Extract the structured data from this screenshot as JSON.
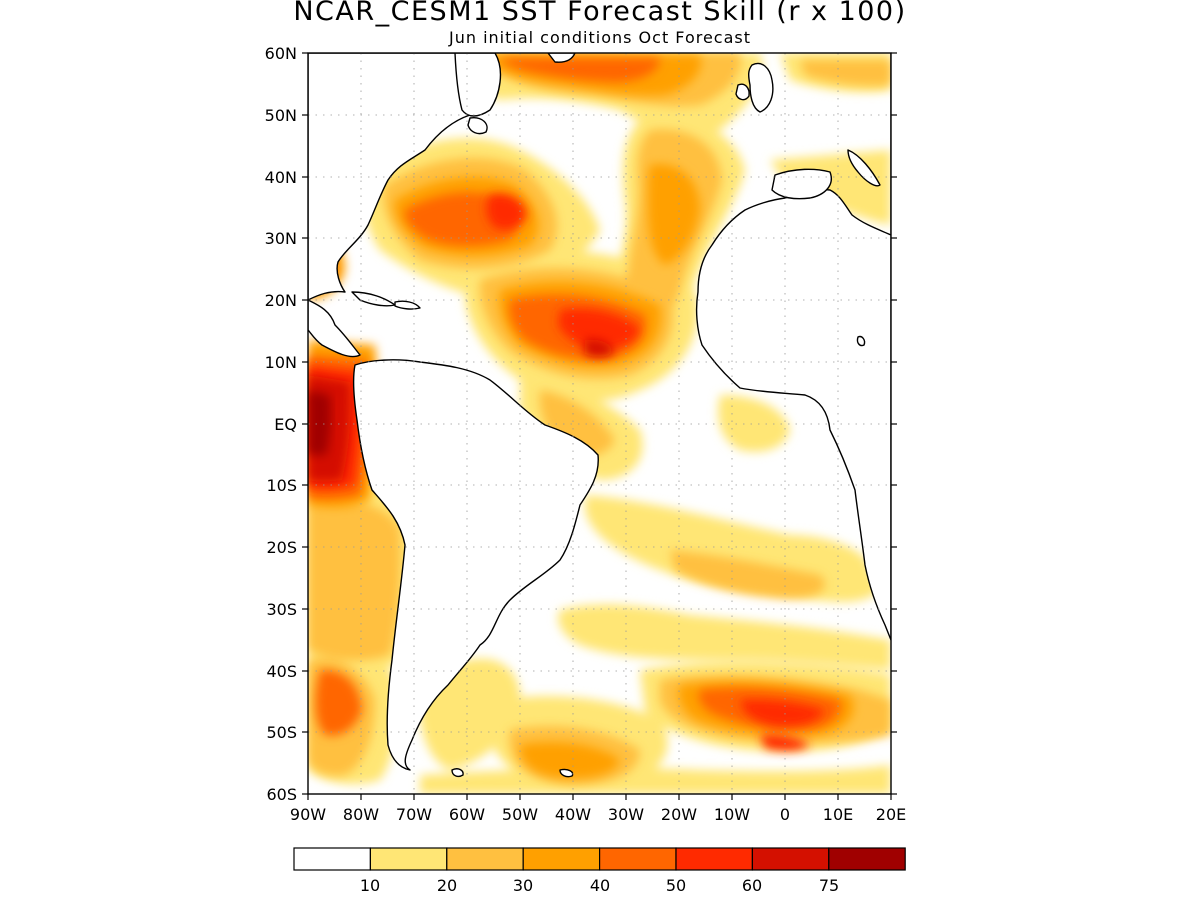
{
  "header": {
    "title": "NCAR_CESM1 SST Forecast Skill (r x 100)",
    "subtitle": "Jun initial conditions  Oct Forecast"
  },
  "map": {
    "lat_labels": [
      "60N",
      "50N",
      "40N",
      "30N",
      "20N",
      "10N",
      "EQ",
      "10S",
      "20S",
      "30S",
      "40S",
      "50S",
      "60S"
    ],
    "lon_labels": [
      "90W",
      "80W",
      "70W",
      "60W",
      "50W",
      "40W",
      "30W",
      "20W",
      "10W",
      "0",
      "10E",
      "20E"
    ],
    "ocean_color": "#ffffff",
    "coast_color": "#000000",
    "grid": "dotted"
  },
  "colorbar": {
    "labels": [
      "10",
      "20",
      "30",
      "40",
      "50",
      "60",
      "75"
    ],
    "colors": [
      "#ffffff",
      "#ffe675",
      "#ffc040",
      "#ffa000",
      "#ff6600",
      "#ff2a00",
      "#d41000",
      "#a00000"
    ]
  }
}
